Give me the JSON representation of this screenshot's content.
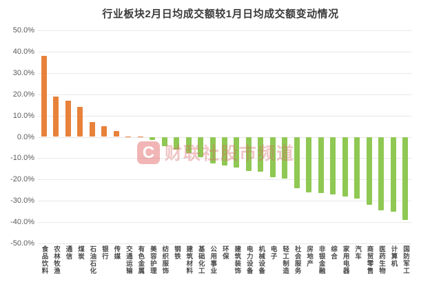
{
  "chart_data": {
    "type": "bar",
    "title": "行业板块2月日均成交额较1月日均成交额变动情况",
    "categories": [
      "食品饮料",
      "农林牧渔",
      "通信",
      "煤炭",
      "石油石化",
      "银行",
      "传媒",
      "交通运输",
      "有色金属",
      "美容护理",
      "纺织服饰",
      "钢铁",
      "建筑材料",
      "基础化工",
      "公用事业",
      "环保",
      "建筑装饰",
      "电力设备",
      "机械设备",
      "电子",
      "轻工制造",
      "社会服务",
      "房地产",
      "非银金融",
      "综合",
      "家用电器",
      "汽车",
      "商贸零售",
      "医药生物",
      "计算机",
      "国防军工"
    ],
    "values": [
      38,
      19,
      17,
      14,
      7,
      5,
      2.7,
      0.2,
      0.1,
      -1.5,
      -4.5,
      -6,
      -7.5,
      -9.5,
      -12.5,
      -13.5,
      -14.5,
      -16,
      -16.5,
      -19,
      -19.5,
      -24,
      -26,
      -26.5,
      -27,
      -28,
      -29,
      -32,
      -34.5,
      -35,
      -39
    ],
    "unit": "%",
    "ylabel": "",
    "xlabel": "",
    "ylim": [
      -50,
      50
    ],
    "y_ticks": [
      "50.0%",
      "40.0%",
      "30.0%",
      "20.0%",
      "10.0%",
      "0.0%",
      "-10.0%",
      "-20.0%",
      "-30.0%",
      "-40.0%",
      "-50.0%"
    ],
    "grid": true,
    "legend": "none",
    "positive_color": "#E8813A",
    "negative_color": "#8FC853",
    "watermark": {
      "logo": "C",
      "text": "财联社股市频道"
    }
  }
}
